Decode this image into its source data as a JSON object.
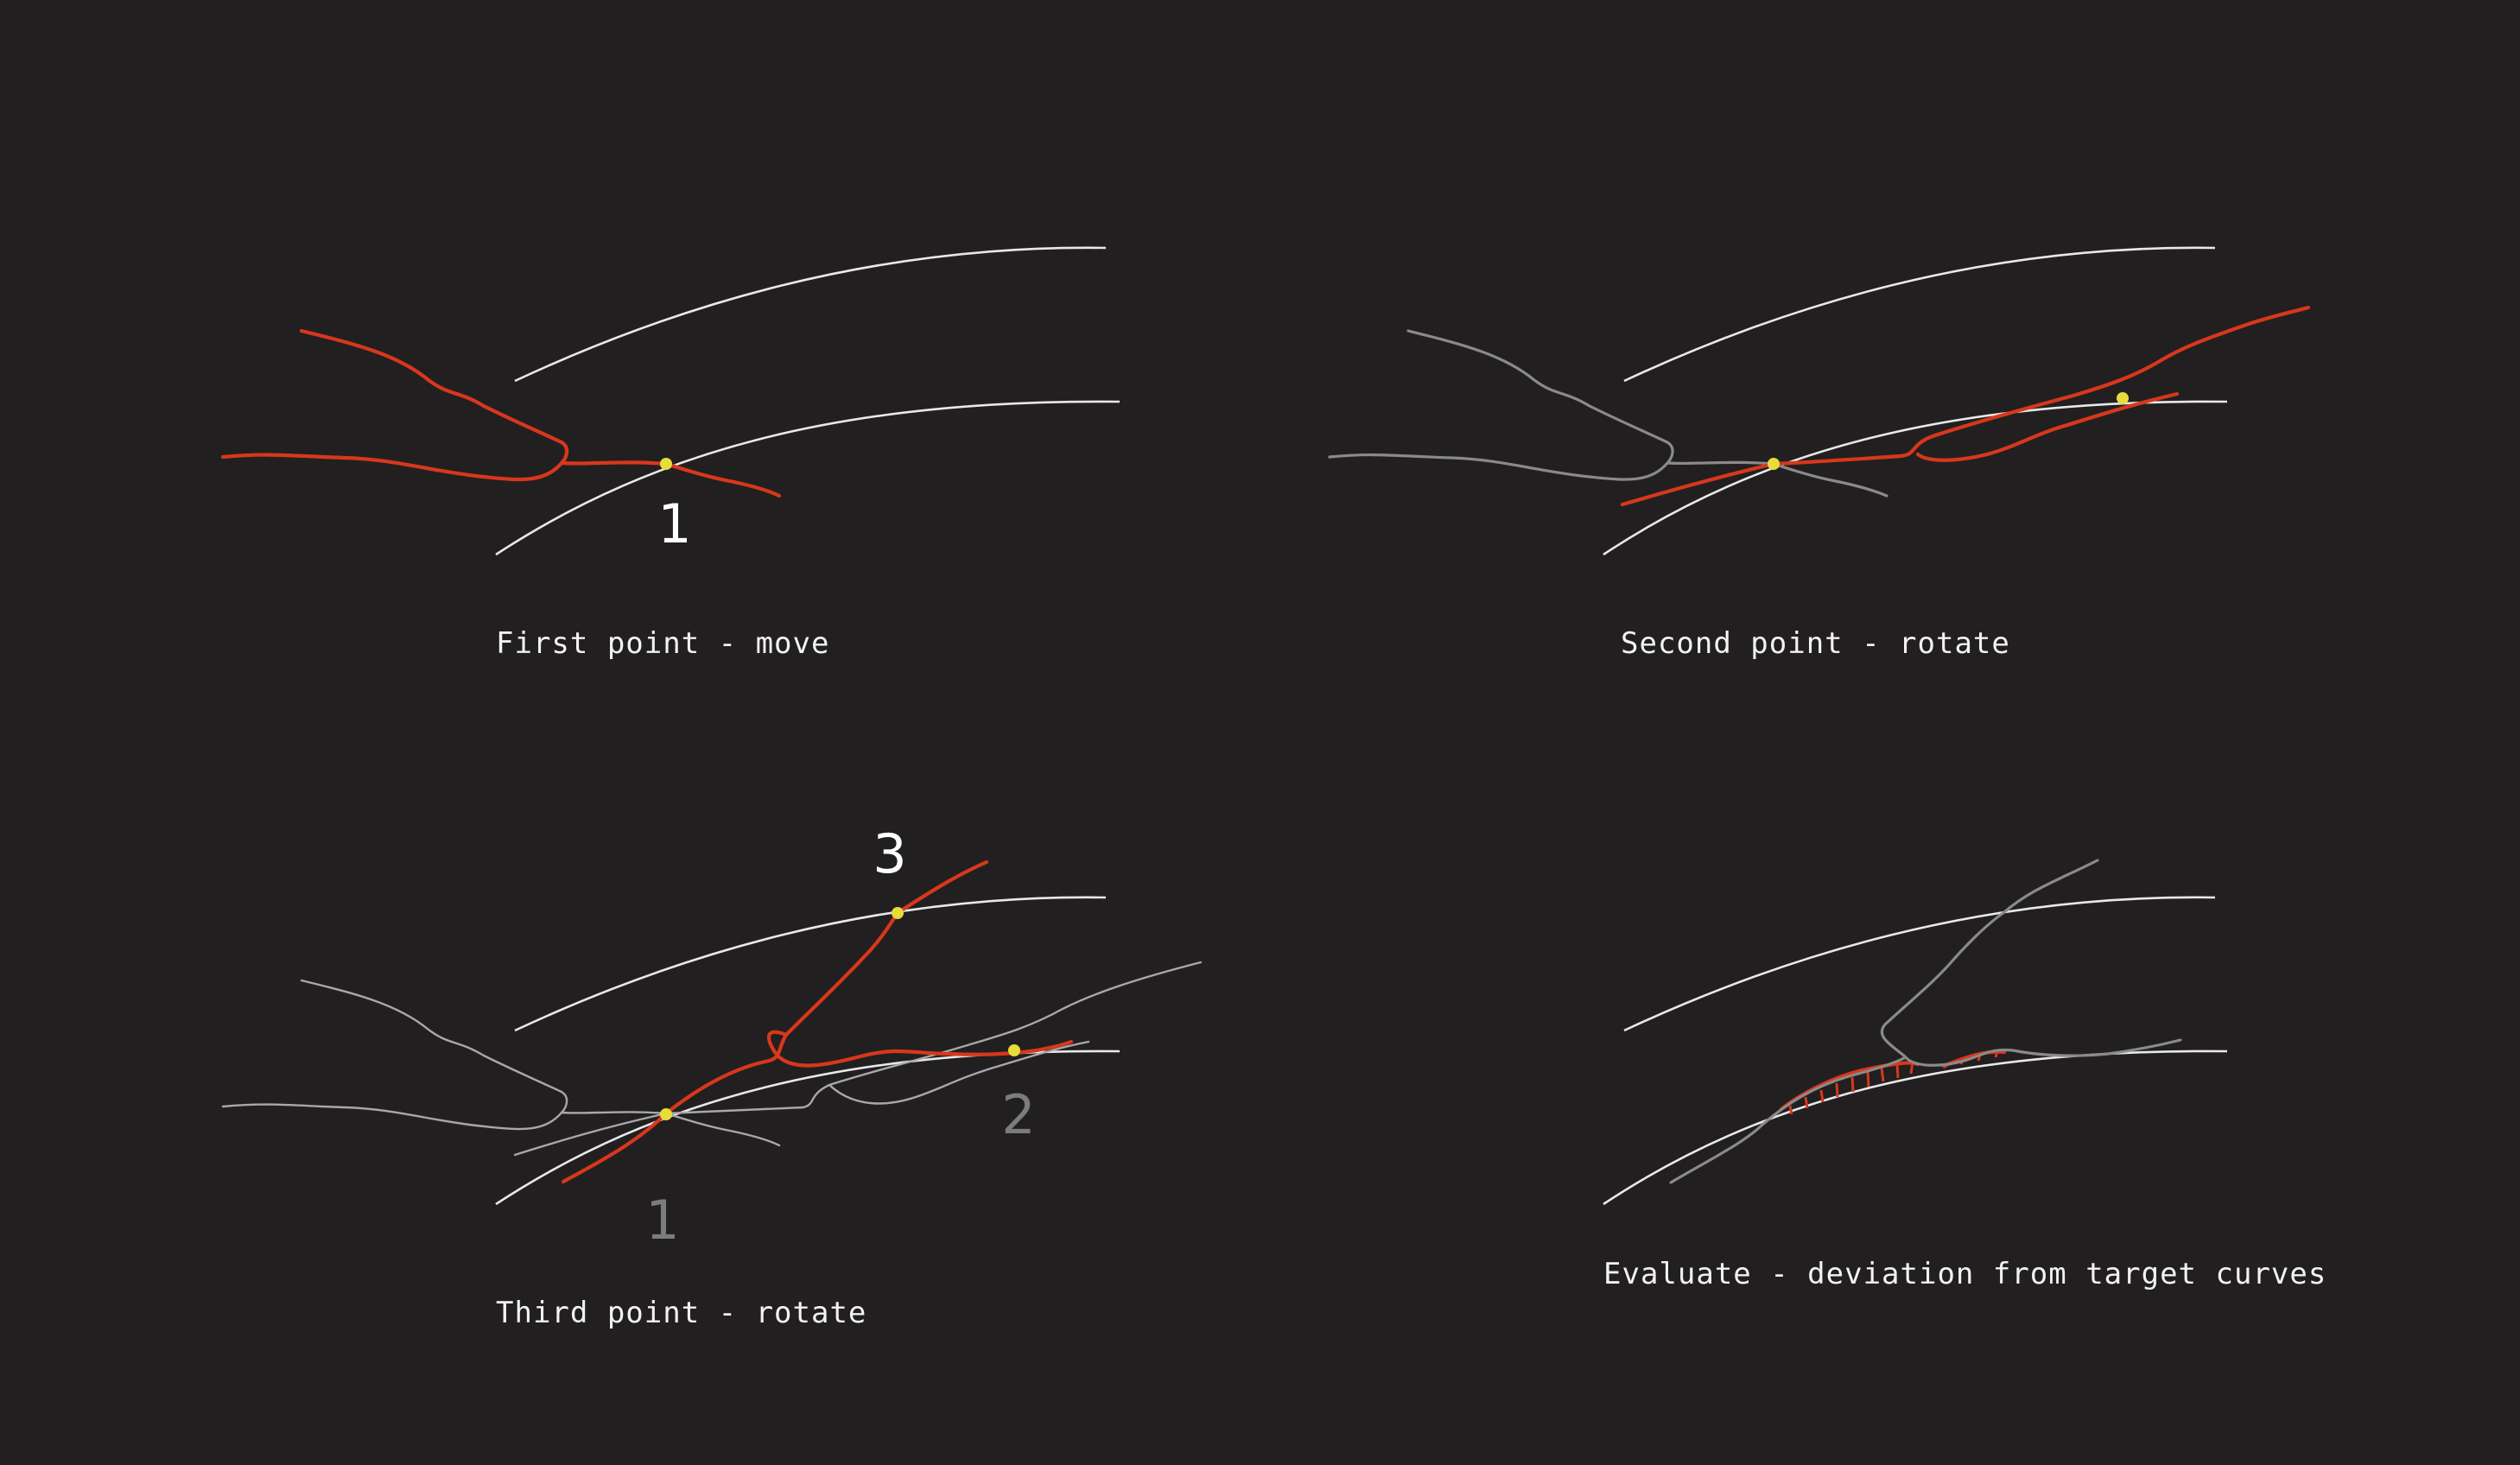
{
  "colors": {
    "background": "#221f20",
    "target_curve": "#e8e8e8",
    "active_curve": "#d8371c",
    "ghost_curve": "#8a8a8a",
    "anchor_point": "#e6dc3a"
  },
  "panels": [
    {
      "caption": "First point - move",
      "labels": [
        "1"
      ]
    },
    {
      "caption": "Second point - rotate",
      "labels": []
    },
    {
      "caption": "Third point - rotate",
      "labels": [
        "3",
        "1",
        "2"
      ]
    },
    {
      "caption": "Evaluate - deviation from target curves",
      "labels": []
    }
  ]
}
